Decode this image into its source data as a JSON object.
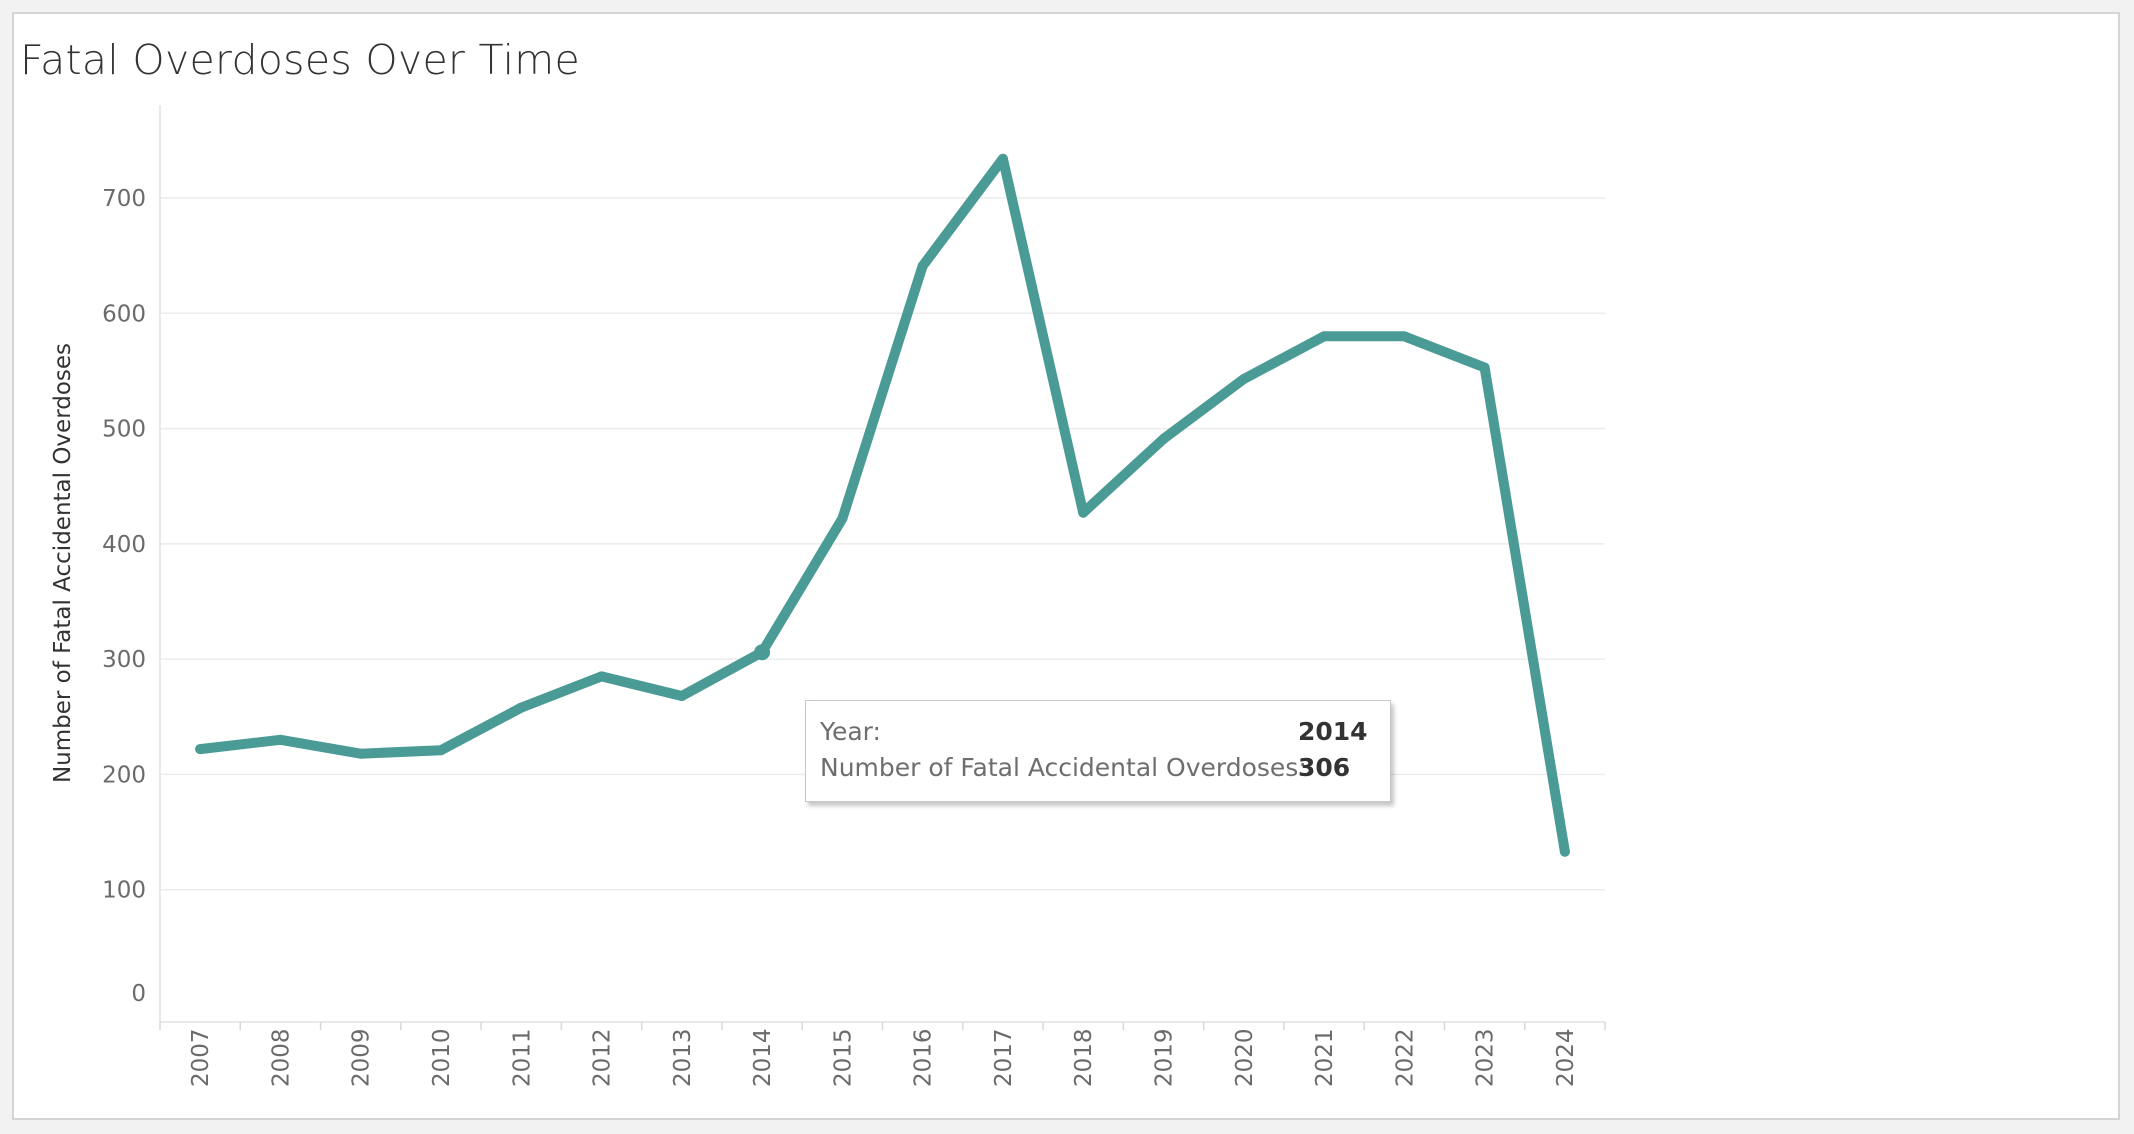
{
  "title": "Fatal Overdoses Over Time",
  "chart_data": {
    "type": "line",
    "title": "Fatal Overdoses Over Time",
    "xlabel": "",
    "ylabel": "Number of Fatal Accidental Overdoses",
    "x": [
      "2007",
      "2008",
      "2009",
      "2010",
      "2011",
      "2012",
      "2013",
      "2014",
      "2015",
      "2016",
      "2017",
      "2018",
      "2019",
      "2020",
      "2021",
      "2022",
      "2023",
      "2024"
    ],
    "values": [
      222,
      230,
      218,
      221,
      258,
      285,
      268,
      306,
      422,
      641,
      734,
      427,
      491,
      543,
      580,
      580,
      553,
      133
    ],
    "yticks": [
      0,
      100,
      200,
      300,
      400,
      500,
      600,
      700
    ],
    "ylim": [
      0,
      780
    ],
    "grid": true,
    "color": "#4a9a95"
  },
  "tooltip": {
    "year_label": "Year:",
    "year_value": "2014",
    "metric_label": "Number of Fatal Accidental Overdoses:",
    "metric_value": "306"
  }
}
